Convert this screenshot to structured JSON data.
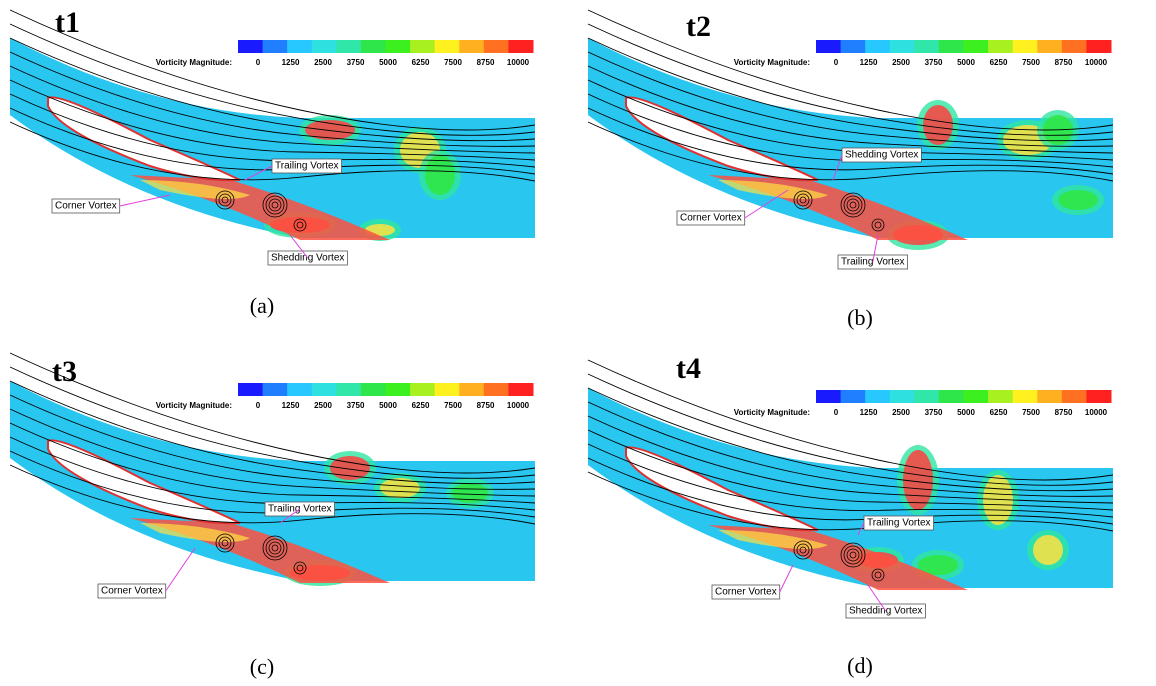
{
  "colorbar": {
    "title": "Vorticity Magnitude:",
    "ticks": [
      0,
      1250,
      2500,
      3750,
      5000,
      6250,
      7500,
      8750,
      10000
    ],
    "colors": [
      "#1a1aff",
      "#1f7fff",
      "#27c8ff",
      "#2ee0e0",
      "#30e6a8",
      "#2ee64a",
      "#3cf020",
      "#a8f020",
      "#fff020",
      "#ffb020",
      "#ff7020",
      "#ff2020"
    ]
  },
  "panels": [
    {
      "label": "t1",
      "caption": "(a)",
      "annotations": [
        "Trailing Vortex",
        "Corner Vortex",
        "Shedding Vortex"
      ]
    },
    {
      "label": "t2",
      "caption": "(b)",
      "annotations": [
        "Shedding Vortex",
        "Corner Vortex",
        "Trailing Vortex"
      ]
    },
    {
      "label": "t3",
      "caption": "(c)",
      "annotations": [
        "Trailing Vortex",
        "Corner Vortex"
      ]
    },
    {
      "label": "t4",
      "caption": "(d)",
      "annotations": [
        "Trailing Vortex",
        "Corner Vortex",
        "Shedding Vortex"
      ]
    }
  ]
}
